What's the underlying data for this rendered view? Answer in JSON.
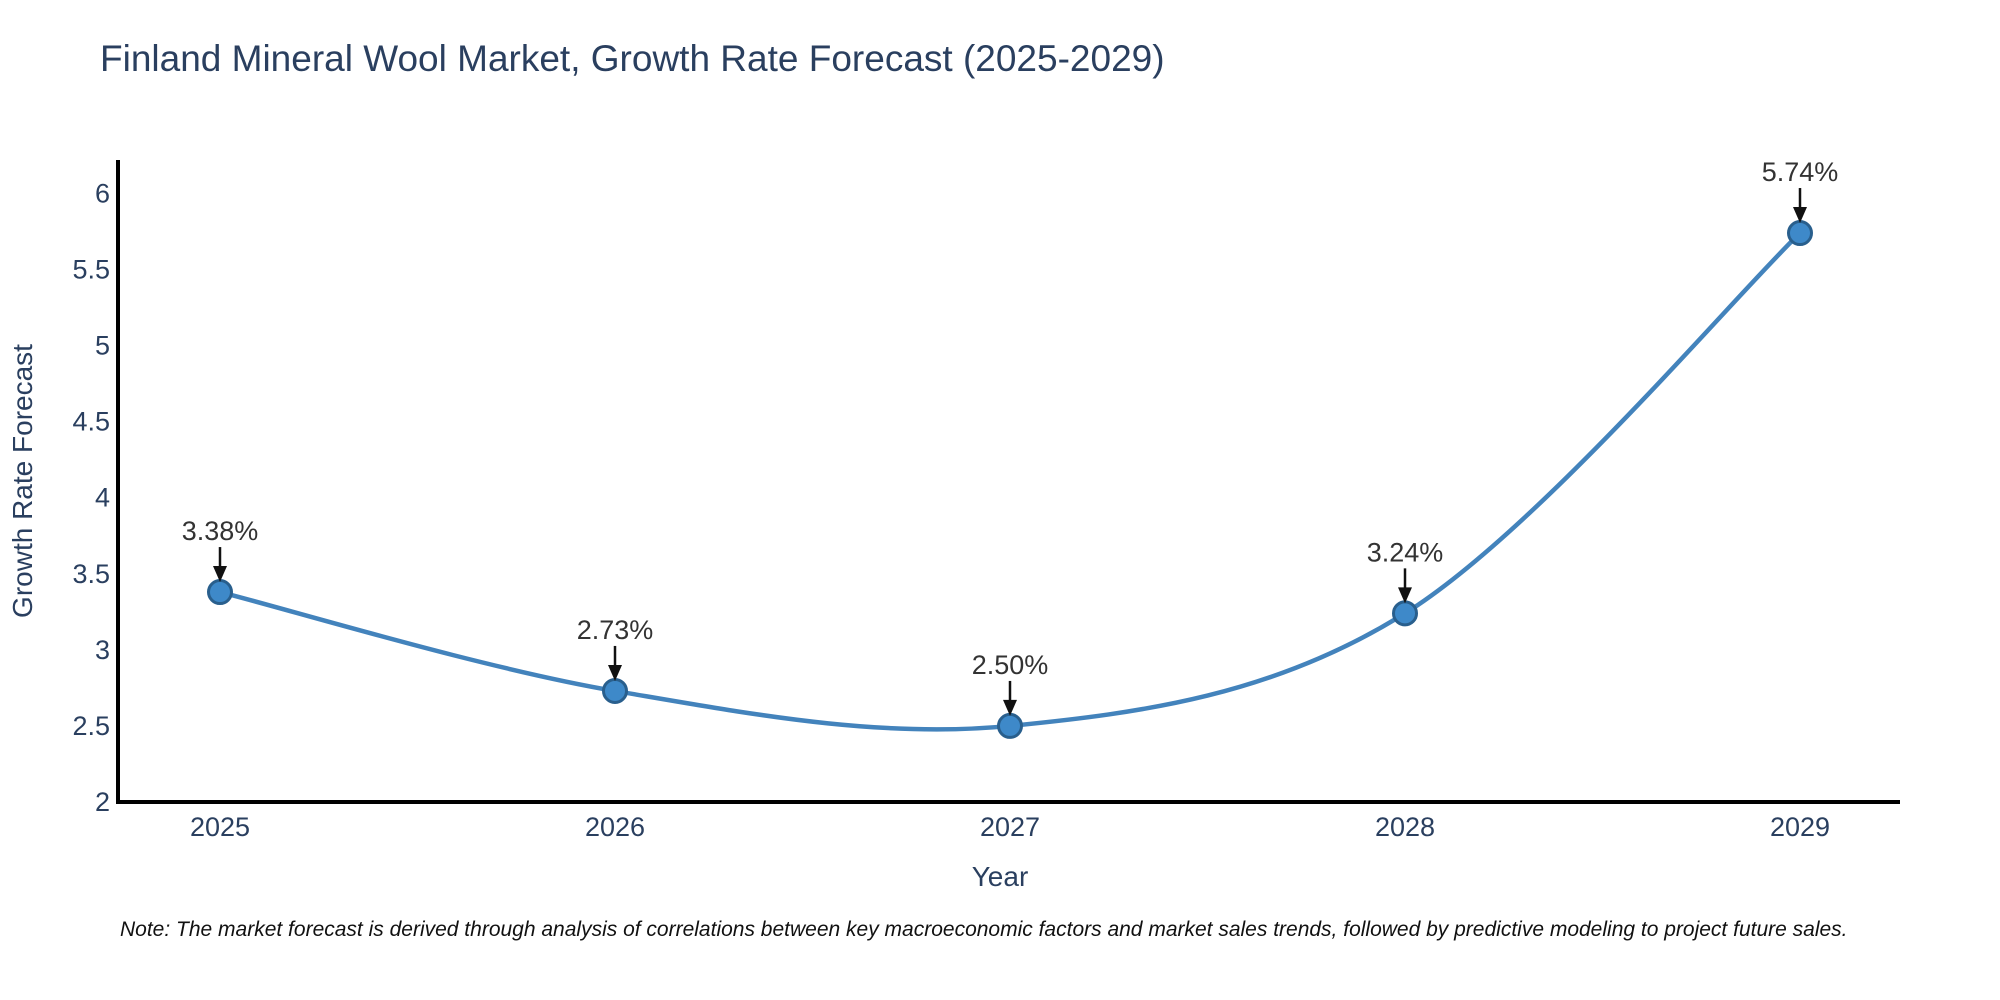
{
  "figure": {
    "note": "Note: The market forecast is derived through analysis of correlations between key macroeconomic factors and market sales trends, followed by predictive modeling to project future sales."
  },
  "chart_data": {
    "type": "line",
    "title": "Finland Mineral Wool Market, Growth Rate Forecast (2025-2029)",
    "xlabel": "Year",
    "ylabel": "Growth Rate Forecast",
    "x": [
      2025,
      2026,
      2027,
      2028,
      2029
    ],
    "series": [
      {
        "name": "Growth Rate Forecast",
        "values": [
          3.38,
          2.73,
          2.5,
          3.24,
          5.74
        ]
      }
    ],
    "point_labels": [
      "3.38%",
      "2.73%",
      "2.50%",
      "3.24%",
      "5.74%"
    ],
    "yticks": [
      2,
      2.5,
      3,
      3.5,
      4,
      4.5,
      5,
      5.5,
      6
    ],
    "ylim": [
      2,
      6.22
    ],
    "line_shape": "spline",
    "grid": false,
    "legend": "none",
    "annotations_have_arrows": true,
    "colors": {
      "line": "#4383BC",
      "marker_fill": "#3E89C9",
      "marker_edge": "#295F8D",
      "axis": "#000000",
      "tick_text": "#2a3f5f",
      "annotation_text": "#333333",
      "arrow": "#111111"
    }
  }
}
